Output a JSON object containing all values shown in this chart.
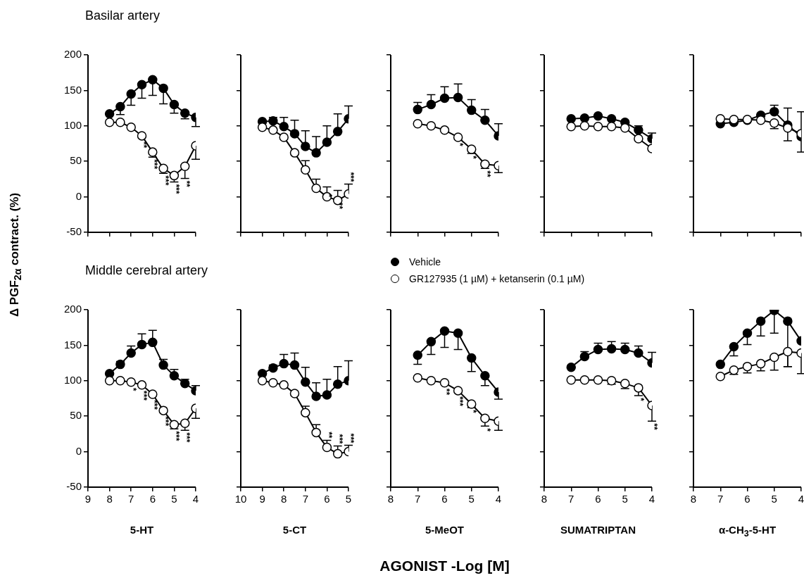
{
  "chart_data": [
    {
      "type": "line",
      "title": "Basilar artery",
      "ylabel": "Δ PGF$_{2α}$ contract. (%)",
      "x": [
        8,
        7.5,
        7,
        6.5,
        6,
        5.5,
        5,
        4.5,
        4
      ],
      "xlim": [
        9,
        4
      ],
      "xticks": [
        9,
        8,
        7,
        6,
        5,
        4
      ],
      "ylim": [
        -50,
        200
      ],
      "yticks": [
        -50,
        0,
        50,
        100,
        150,
        200
      ],
      "tick_labels": "y",
      "marker": "circle",
      "series": [
        {
          "color": "#000000",
          "values": [
            117,
            127,
            145,
            158,
            165,
            153,
            130,
            118,
            112
          ],
          "errors": [
            null,
            [
              116,
              127
            ],
            [
              129,
              145
            ],
            [
              139,
              158
            ],
            [
              143,
              165
            ],
            [
              131,
              153
            ],
            [
              118,
              130
            ],
            [
              110,
              118
            ],
            [
              99,
              112
            ]
          ]
        },
        {
          "color": "#ffffff",
          "values": [
            105,
            105,
            98,
            86,
            63,
            40,
            30,
            43,
            72
          ],
          "errors": [
            null,
            null,
            null,
            null,
            [
              56,
              63
            ],
            [
              33,
              40
            ],
            [
              21,
              30
            ],
            [
              26,
              43
            ],
            [
              53,
              72
            ]
          ]
        }
      ],
      "annotations": [
        {
          "text": "**",
          "x": 6.5,
          "y": 86
        },
        {
          "text": "***",
          "x": 6,
          "y": 63
        },
        {
          "text": "***",
          "x": 5.5,
          "y": 40
        },
        {
          "text": "***",
          "x": 5,
          "y": 30
        },
        {
          "text": "**",
          "x": 4.5,
          "y": 43
        }
      ]
    },
    {
      "type": "line",
      "x": [
        9,
        8.5,
        8,
        7.5,
        7,
        6.5,
        6,
        5.5,
        5
      ],
      "xlim": [
        10,
        5
      ],
      "xticks": [
        10,
        9,
        8,
        7,
        6,
        5
      ],
      "ylim": [
        -50,
        200
      ],
      "yticks": [
        -50,
        0,
        50,
        100,
        150,
        200
      ],
      "tick_labels": false,
      "marker": "circle",
      "series": [
        {
          "color": "#000000",
          "values": [
            106,
            107,
            99,
            89,
            71,
            62,
            77,
            92,
            110
          ],
          "errors": [
            null,
            [
              107,
              112
            ],
            [
              99,
              112
            ],
            [
              89,
              108
            ],
            [
              71,
              93
            ],
            [
              62,
              85
            ],
            [
              77,
              100
            ],
            [
              92,
              117
            ],
            [
              110,
              128
            ]
          ]
        },
        {
          "color": "#ffffff",
          "values": [
            98,
            94,
            84,
            62,
            38,
            12,
            0,
            -5,
            4
          ],
          "errors": [
            null,
            null,
            null,
            null,
            [
              38,
              51
            ],
            [
              12,
              25
            ],
            [
              0,
              14
            ],
            [
              -5,
              9
            ],
            [
              4,
              18
            ]
          ]
        }
      ],
      "annotations": [
        {
          "text": "*",
          "x": 6,
          "y": 12
        },
        {
          "text": "**",
          "x": 5.5,
          "y": 0
        },
        {
          "text": "***",
          "x": 5,
          "y": 4
        }
      ]
    },
    {
      "type": "line",
      "x": [
        7,
        6.5,
        6,
        5.5,
        5,
        4.5,
        4
      ],
      "xlim": [
        8,
        4
      ],
      "xticks": [
        8,
        7,
        6,
        5,
        4
      ],
      "ylim": [
        -50,
        200
      ],
      "yticks": [
        -50,
        0,
        50,
        100,
        150,
        200
      ],
      "tick_labels": false,
      "marker": "circle",
      "legend": "bottom",
      "series": [
        {
          "name": "Vehicle",
          "color": "#000000",
          "values": [
            123,
            130,
            139,
            140,
            122,
            108,
            86
          ],
          "errors": [
            [
              123,
              133
            ],
            [
              130,
              144
            ],
            [
              139,
              155
            ],
            [
              140,
              159
            ],
            [
              122,
              137
            ],
            [
              108,
              123
            ],
            [
              86,
              103
            ]
          ]
        },
        {
          "name": "GR127935 (1 µM) + ketanserin (0.1 µM)",
          "color": "#ffffff",
          "values": [
            103,
            100,
            94,
            84,
            67,
            46,
            44
          ],
          "errors": [
            null,
            null,
            null,
            null,
            [
              61,
              67
            ],
            [
              40,
              46
            ],
            [
              34,
              44
            ]
          ]
        }
      ],
      "annotations": [
        {
          "text": "*",
          "x": 5.5,
          "y": 84
        },
        {
          "text": "*",
          "x": 5,
          "y": 67
        },
        {
          "text": "**",
          "x": 4.5,
          "y": 46
        }
      ]
    },
    {
      "type": "line",
      "x": [
        7,
        6.5,
        6,
        5.5,
        5,
        4.5,
        4
      ],
      "xlim": [
        8,
        4
      ],
      "xticks": [
        8,
        7,
        6,
        5,
        4
      ],
      "ylim": [
        -50,
        200
      ],
      "yticks": [
        -50,
        0,
        50,
        100,
        150,
        200
      ],
      "tick_labels": false,
      "marker": "circle",
      "series": [
        {
          "color": "#000000",
          "values": [
            110,
            111,
            114,
            110,
            105,
            94,
            82
          ],
          "errors": [
            null,
            null,
            null,
            null,
            null,
            [
              94,
              100
            ],
            [
              82,
              90
            ]
          ]
        },
        {
          "color": "#ffffff",
          "values": [
            99,
            100,
            99,
            99,
            97,
            82,
            68
          ]
        }
      ]
    },
    {
      "type": "line",
      "x": [
        7,
        6.5,
        6,
        5.5,
        5,
        4.5,
        4
      ],
      "xlim": [
        8,
        4
      ],
      "xticks": [
        8,
        7,
        6,
        5,
        4
      ],
      "ylim": [
        -50,
        200
      ],
      "yticks": [
        -50,
        0,
        50,
        100,
        150,
        200
      ],
      "tick_labels": false,
      "marker": "circle",
      "series": [
        {
          "color": "#000000",
          "values": [
            103,
            105,
            108,
            115,
            120,
            101,
            85
          ],
          "errors": [
            null,
            null,
            null,
            null,
            [
              120,
              129
            ],
            null,
            null
          ]
        },
        {
          "color": "#ffffff",
          "values": [
            110,
            109,
            109,
            108,
            104,
            97,
            89
          ],
          "errors": [
            null,
            null,
            null,
            null,
            [
              96,
              104
            ],
            [
              79,
              125
            ],
            [
              63,
              120
            ]
          ]
        }
      ]
    },
    {
      "type": "line",
      "title": "Middle cerebral artery",
      "xlabel": "5-HT",
      "x": [
        8,
        7.5,
        7,
        6.5,
        6,
        5.5,
        5,
        4.5,
        4
      ],
      "xlim": [
        9,
        4
      ],
      "xticks": [
        9,
        8,
        7,
        6,
        5,
        4
      ],
      "ylim": [
        -50,
        200
      ],
      "yticks": [
        -50,
        0,
        50,
        100,
        150,
        200
      ],
      "marker": "circle",
      "series": [
        {
          "color": "#000000",
          "values": [
            110,
            123,
            139,
            151,
            154,
            122,
            107,
            96,
            86
          ],
          "errors": [
            null,
            [
              123,
              127
            ],
            [
              139,
              149
            ],
            [
              151,
              166
            ],
            [
              154,
              171
            ],
            [
              122,
              130
            ],
            [
              107,
              116
            ],
            [
              96,
              102
            ],
            [
              86,
              93
            ]
          ]
        },
        {
          "color": "#ffffff",
          "values": [
            100,
            100,
            98,
            94,
            81,
            58,
            38,
            40,
            61
          ],
          "errors": [
            null,
            null,
            null,
            null,
            null,
            null,
            [
              32,
              38
            ],
            [
              30,
              40
            ],
            [
              47,
              61
            ]
          ]
        }
      ],
      "annotations": [
        {
          "text": "*",
          "x": 7,
          "y": 98
        },
        {
          "text": "***",
          "x": 6.5,
          "y": 94
        },
        {
          "text": "***",
          "x": 6,
          "y": 81
        },
        {
          "text": "***",
          "x": 5.5,
          "y": 58
        },
        {
          "text": "***",
          "x": 5,
          "y": 38
        },
        {
          "text": "***",
          "x": 4.5,
          "y": 40
        }
      ]
    },
    {
      "type": "line",
      "xlabel": "5-CT",
      "x": [
        9,
        8.5,
        8,
        7.5,
        7,
        6.5,
        6,
        5.5,
        5
      ],
      "xlim": [
        10,
        5
      ],
      "xticks": [
        10,
        9,
        8,
        7,
        6,
        5
      ],
      "ylim": [
        -50,
        200
      ],
      "yticks": [
        -50,
        0,
        50,
        100,
        150,
        200
      ],
      "tick_labels": "x",
      "marker": "circle",
      "series": [
        {
          "color": "#000000",
          "values": [
            110,
            118,
            124,
            122,
            98,
            78,
            80,
            95,
            100
          ],
          "errors": [
            null,
            [
              118,
              122
            ],
            [
              124,
              137
            ],
            [
              122,
              139
            ],
            [
              98,
              119
            ],
            [
              78,
              97
            ],
            [
              80,
              102
            ],
            [
              95,
              120
            ],
            [
              100,
              128
            ]
          ]
        },
        {
          "color": "#ffffff",
          "values": [
            100,
            97,
            94,
            82,
            55,
            27,
            6,
            -3,
            0
          ],
          "errors": [
            null,
            null,
            null,
            null,
            [
              55,
              64
            ],
            [
              27,
              38
            ],
            [
              6,
              16
            ],
            [
              -3,
              8
            ],
            [
              0,
              9
            ]
          ]
        }
      ],
      "annotations": [
        {
          "text": "**",
          "x": 6,
          "y": 6
        },
        {
          "text": "***",
          "x": 5.5,
          "y": -3
        },
        {
          "text": "***",
          "x": 5,
          "y": 0
        }
      ]
    },
    {
      "type": "line",
      "xlabel": "5-MeOT",
      "x": [
        7,
        6.5,
        6,
        5.5,
        5,
        4.5,
        4
      ],
      "xlim": [
        8,
        4
      ],
      "xticks": [
        8,
        7,
        6,
        5,
        4
      ],
      "ylim": [
        -50,
        200
      ],
      "yticks": [
        -50,
        0,
        50,
        100,
        150,
        200
      ],
      "tick_labels": "x",
      "marker": "circle",
      "series": [
        {
          "color": "#000000",
          "values": [
            136,
            155,
            170,
            167,
            132,
            107,
            84
          ],
          "errors": [
            [
              123,
              136
            ],
            [
              137,
              155
            ],
            [
              147,
              170
            ],
            [
              144,
              167
            ],
            [
              113,
              132
            ],
            [
              93,
              107
            ],
            [
              74,
              84
            ]
          ]
        },
        {
          "color": "#ffffff",
          "values": [
            104,
            100,
            97,
            86,
            67,
            47,
            43
          ],
          "errors": [
            null,
            null,
            null,
            null,
            [
              62,
              67
            ],
            [
              36,
              47
            ],
            [
              30,
              43
            ]
          ]
        }
      ],
      "annotations": [
        {
          "text": "**",
          "x": 6,
          "y": 97
        },
        {
          "text": "***",
          "x": 5.5,
          "y": 86
        },
        {
          "text": "*",
          "x": 5,
          "y": 67
        },
        {
          "text": "*",
          "x": 4.5,
          "y": 47
        },
        "AGONIST -Log [M]"
      ]
    },
    {
      "type": "line",
      "xlabel": "SUMATRIPTAN",
      "x": [
        7,
        6.5,
        6,
        5.5,
        5,
        4.5,
        4
      ],
      "xlim": [
        8,
        4
      ],
      "xticks": [
        8,
        7,
        6,
        5,
        4
      ],
      "ylim": [
        -50,
        200
      ],
      "yticks": [
        -50,
        0,
        50,
        100,
        150,
        200
      ],
      "tick_labels": "x",
      "marker": "circle",
      "series": [
        {
          "color": "#000000",
          "values": [
            119,
            134,
            144,
            145,
            144,
            139,
            125
          ],
          "errors": [
            null,
            [
              134,
              141
            ],
            [
              144,
              153
            ],
            [
              145,
              155
            ],
            [
              144,
              153
            ],
            [
              139,
              149
            ],
            [
              125,
              140
            ]
          ]
        },
        {
          "color": "#ffffff",
          "values": [
            101,
            101,
            101,
            100,
            96,
            90,
            65
          ],
          "errors": [
            null,
            null,
            null,
            [
              95,
              100
            ],
            [
              89,
              96
            ],
            [
              79,
              90
            ],
            [
              43,
              65
            ]
          ]
        }
      ],
      "annotations": [
        {
          "text": "*",
          "x": 4.5,
          "y": 90
        },
        {
          "text": "**",
          "x": 4,
          "y": 65
        }
      ]
    },
    {
      "type": "line",
      "xlabel": "α-CH$_{3}$-5-HT",
      "x": [
        7,
        6.5,
        6,
        5.5,
        5,
        4.5,
        4
      ],
      "xlim": [
        8,
        4
      ],
      "xticks": [
        8,
        7,
        6,
        5,
        4
      ],
      "ylim": [
        -50,
        200
      ],
      "yticks": [
        -50,
        0,
        50,
        100,
        150,
        200
      ],
      "tick_labels": "x",
      "marker": "circle",
      "series": [
        {
          "color": "#000000",
          "values": [
            123,
            148,
            167,
            184,
            199,
            184,
            156
          ],
          "errors": [
            null,
            [
              135,
              148
            ],
            [
              151,
              167
            ],
            [
              163,
              184
            ],
            [
              167,
              199
            ],
            [
              120,
              184
            ],
            null
          ]
        },
        {
          "color": "#ffffff",
          "values": [
            106,
            115,
            120,
            124,
            133,
            141,
            139
          ],
          "errors": [
            null,
            [
              109,
              115
            ],
            [
              111,
              120
            ],
            [
              114,
              124
            ],
            [
              115,
              133
            ],
            [
              120,
              141
            ],
            [
              110,
              139
            ]
          ]
        }
      ]
    }
  ]
}
